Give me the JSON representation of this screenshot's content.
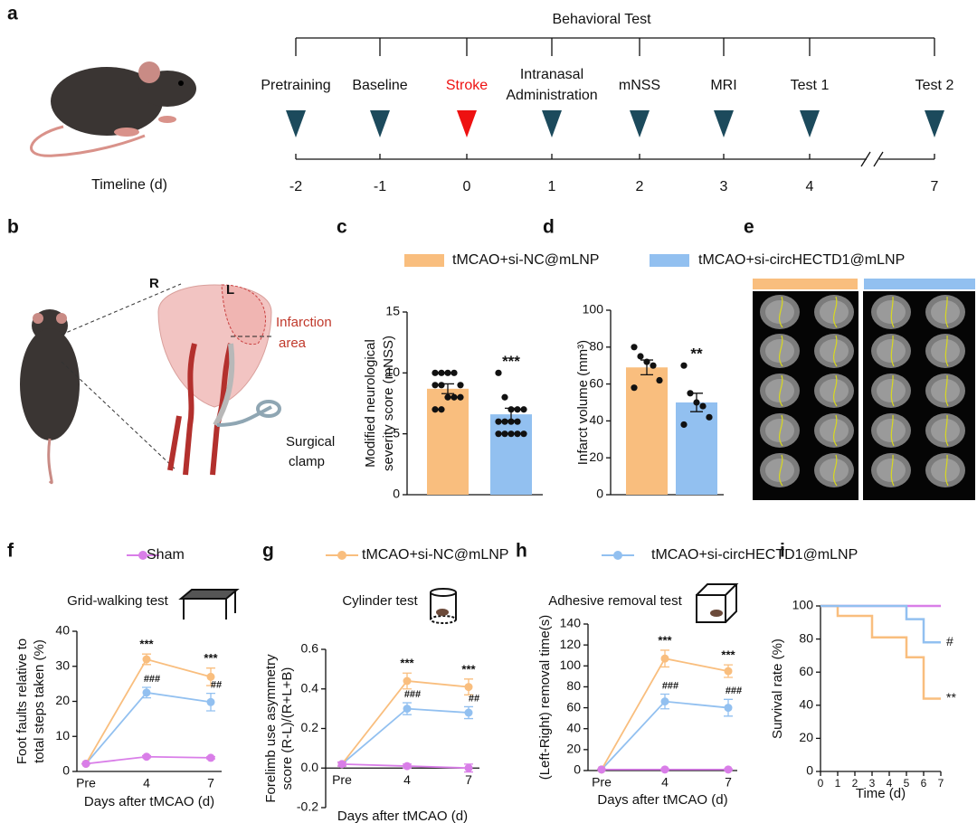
{
  "panel_labels": [
    "a",
    "b",
    "c",
    "d",
    "e",
    "f",
    "g",
    "h",
    "i"
  ],
  "timeline": {
    "title": "Behavioral Test",
    "axis_label": "Timeline (d)",
    "events": [
      {
        "lines": [
          "Pretraining"
        ],
        "day": -2,
        "color": "#1c4a5c"
      },
      {
        "lines": [
          "Baseline"
        ],
        "day": -1,
        "color": "#1c4a5c"
      },
      {
        "lines": [
          "Stroke"
        ],
        "day": 0,
        "color": "#ee1111",
        "label_color": "#ee1111"
      },
      {
        "lines": [
          "Intranasal",
          "Administration"
        ],
        "day": 1,
        "color": "#1c4a5c"
      },
      {
        "lines": [
          "mNSS"
        ],
        "day": 2,
        "color": "#1c4a5c"
      },
      {
        "lines": [
          "MRI"
        ],
        "day": 3,
        "color": "#1c4a5c"
      },
      {
        "lines": [
          "Test 1"
        ],
        "day": 4,
        "color": "#1c4a5c"
      },
      {
        "lines": [
          "Test 2"
        ],
        "day": 7,
        "color": "#1c4a5c"
      }
    ]
  },
  "surgery": {
    "right": "R",
    "left": "L",
    "infarct": [
      "Infarction",
      "area"
    ],
    "clamp": [
      "Surgical",
      "clamp"
    ]
  },
  "legend_cd": [
    {
      "name": "tMCAO+si-NC@mLNP",
      "color": "#f9be7e"
    },
    {
      "name": "tMCAO+si-circHECTD1@mLNP",
      "color": "#92c0f0"
    }
  ],
  "legend_fgh": [
    {
      "name": "Sham",
      "color": "#d97ee8"
    },
    {
      "name": "tMCAO+si-NC@mLNP",
      "color": "#f9be7e"
    },
    {
      "name": "tMCAO+si-circHECTD1@mLNP",
      "color": "#92c0f0"
    }
  ],
  "chart_data": [
    {
      "type": "bar",
      "ylabel": [
        "Modified neurological",
        "severity score (mNSS)"
      ],
      "values": [
        8.7,
        6.6
      ],
      "errors": [
        0.4,
        0.5
      ],
      "points": [
        [
          10,
          10,
          10,
          10,
          9,
          9,
          9,
          8,
          8,
          8,
          7,
          7
        ],
        [
          10,
          8,
          7,
          7,
          7,
          6,
          6,
          6,
          6,
          5,
          5,
          5,
          5,
          5
        ]
      ],
      "annotation": "***",
      "ylim": [
        0,
        15
      ],
      "yticks": [
        0,
        5,
        10,
        15
      ]
    },
    {
      "type": "bar",
      "ylabel": [
        "Infarct volume (mm³)"
      ],
      "values": [
        69,
        50
      ],
      "errors": [
        4,
        5
      ],
      "points": [
        [
          80,
          75,
          72,
          70,
          62,
          58
        ],
        [
          70,
          55,
          50,
          48,
          42,
          38
        ]
      ],
      "annotation": "**",
      "ylim": [
        0,
        100
      ],
      "yticks": [
        0,
        20,
        40,
        60,
        80,
        100
      ]
    },
    {
      "type": "line",
      "title": "Grid-walking test",
      "ylabel": [
        "Foot faults relative to",
        "total steps taken (%)"
      ],
      "xlabel": "Days after tMCAO (d)",
      "categories": [
        "Pre",
        "4",
        "7"
      ],
      "ylim": [
        0,
        40
      ],
      "yticks": [
        0,
        10,
        20,
        30,
        40
      ],
      "series": [
        {
          "values": [
            2.2,
            4.2,
            3.9
          ],
          "errors": [
            0,
            0.3,
            0.3
          ]
        },
        {
          "values": [
            2.2,
            32,
            27
          ],
          "errors": [
            0,
            1.5,
            2.5
          ]
        },
        {
          "values": [
            2.2,
            22.5,
            19.8
          ],
          "errors": [
            0,
            1.5,
            2.5
          ]
        }
      ],
      "annotations_top": [
        "***",
        "***"
      ],
      "annotations_bottom": [
        "###",
        "##"
      ]
    },
    {
      "type": "line",
      "title": "Cylinder test",
      "ylabel": [
        "Forelimb use asymmetry",
        "score (R-L)/(R+L+B)"
      ],
      "xlabel": "Days after tMCAO (d)",
      "categories": [
        "Pre",
        "4",
        "7"
      ],
      "ylim": [
        -0.2,
        0.6
      ],
      "yticks": [
        -0.2,
        {
          "value": 0,
          "label": "0.0"
        },
        0.2,
        0.4,
        0.6
      ],
      "series": [
        {
          "values": [
            0.02,
            0.01,
            0
          ],
          "errors": [
            0.01,
            0.01,
            0.02
          ]
        },
        {
          "values": [
            0.02,
            0.44,
            0.41
          ],
          "errors": [
            0.01,
            0.04,
            0.04
          ]
        },
        {
          "values": [
            0.02,
            0.3,
            0.28
          ],
          "errors": [
            0.01,
            0.03,
            0.03
          ]
        }
      ],
      "annotations_top": [
        "***",
        "***"
      ],
      "annotations_bottom": [
        "###",
        "##"
      ]
    },
    {
      "type": "line",
      "title": "Adhesive removal test",
      "ylabel": [
        "(Left-Right) removal time(s)"
      ],
      "xlabel": "Days after tMCAO (d)",
      "categories": [
        "Pre",
        "4",
        "7"
      ],
      "ylim": [
        0,
        140
      ],
      "yticks": [
        0,
        20,
        40,
        60,
        80,
        100,
        120,
        140
      ],
      "series": [
        {
          "values": [
            1,
            1,
            1
          ],
          "errors": [
            0,
            0.5,
            0.5
          ]
        },
        {
          "values": [
            1,
            107,
            95
          ],
          "errors": [
            0,
            8,
            6
          ]
        },
        {
          "values": [
            1,
            66,
            60
          ],
          "errors": [
            0,
            7,
            8
          ]
        }
      ],
      "annotations_top": [
        "***",
        "***"
      ],
      "annotations_bottom": [
        "###",
        "###"
      ]
    },
    {
      "type": "step",
      "ylabel": [
        "Survival rate (%)"
      ],
      "xlabel": "Time (d)",
      "xlim": [
        0,
        7
      ],
      "xticks": [
        0,
        1,
        2,
        3,
        4,
        5,
        6,
        7
      ],
      "ylim": [
        0,
        100
      ],
      "yticks": [
        0,
        20,
        40,
        60,
        80,
        100
      ],
      "series": [
        {
          "x": [
            0,
            7
          ],
          "values": [
            100,
            100
          ]
        },
        {
          "x": [
            0,
            1,
            3,
            5,
            6,
            7
          ],
          "values": [
            100,
            94,
            81,
            69,
            44,
            44
          ]
        },
        {
          "x": [
            0,
            5,
            6,
            7
          ],
          "values": [
            100,
            92,
            78,
            78
          ]
        }
      ],
      "annotations": [
        "#",
        "**"
      ]
    }
  ]
}
